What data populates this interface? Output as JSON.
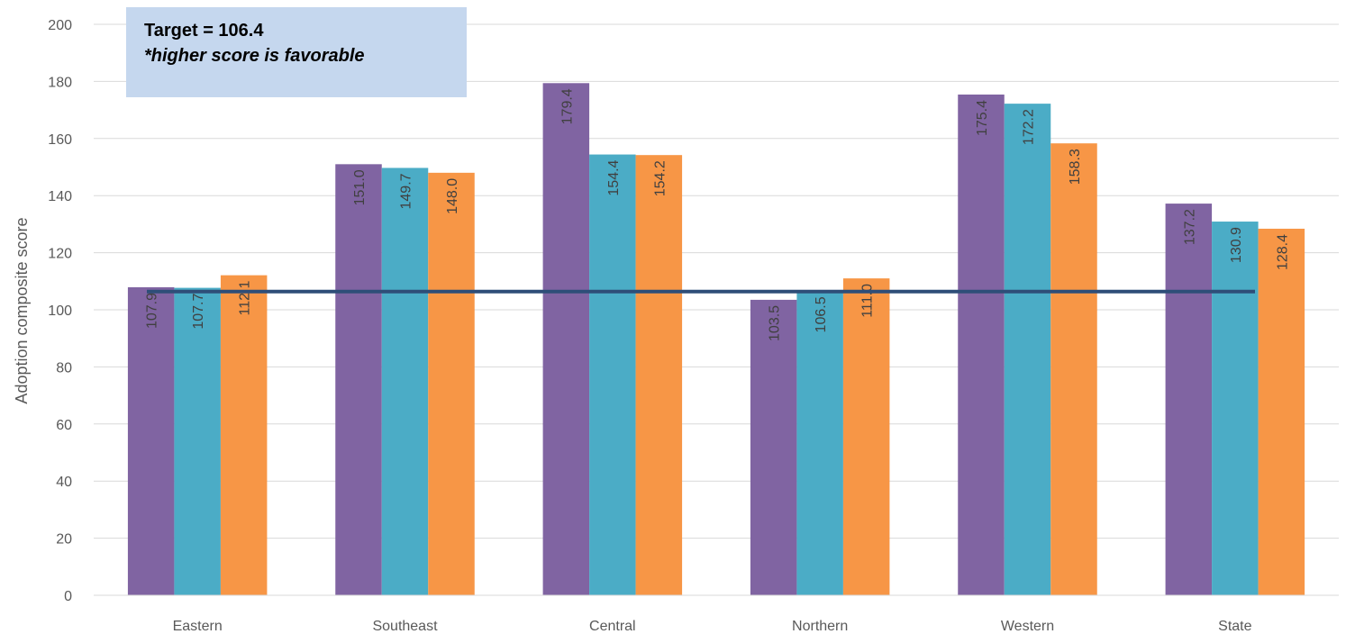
{
  "chart_data": {
    "type": "bar",
    "categories": [
      "Eastern",
      "Southeast",
      "Central",
      "Northern",
      "Western",
      "State"
    ],
    "series": [
      {
        "values": [
          107.9,
          151.0,
          179.4,
          103.5,
          175.4,
          137.2
        ],
        "color": "#8064a2"
      },
      {
        "values": [
          107.7,
          149.7,
          154.4,
          106.5,
          172.2,
          130.9
        ],
        "color": "#4bacc6"
      },
      {
        "values": [
          112.1,
          148.0,
          154.2,
          111.0,
          158.3,
          128.4
        ],
        "color": "#f79646"
      }
    ],
    "target": {
      "value": 106.4,
      "color": "#2e4e78"
    },
    "ylabel": "Adoption composite score",
    "ylim": [
      0,
      200
    ],
    "yticks": [
      0,
      20,
      40,
      60,
      80,
      100,
      120,
      140,
      160,
      180,
      200
    ],
    "grid": true,
    "data_labels_rotated": true
  },
  "note": {
    "line1": "Target = 106.4",
    "line2": "*higher score is favorable"
  }
}
